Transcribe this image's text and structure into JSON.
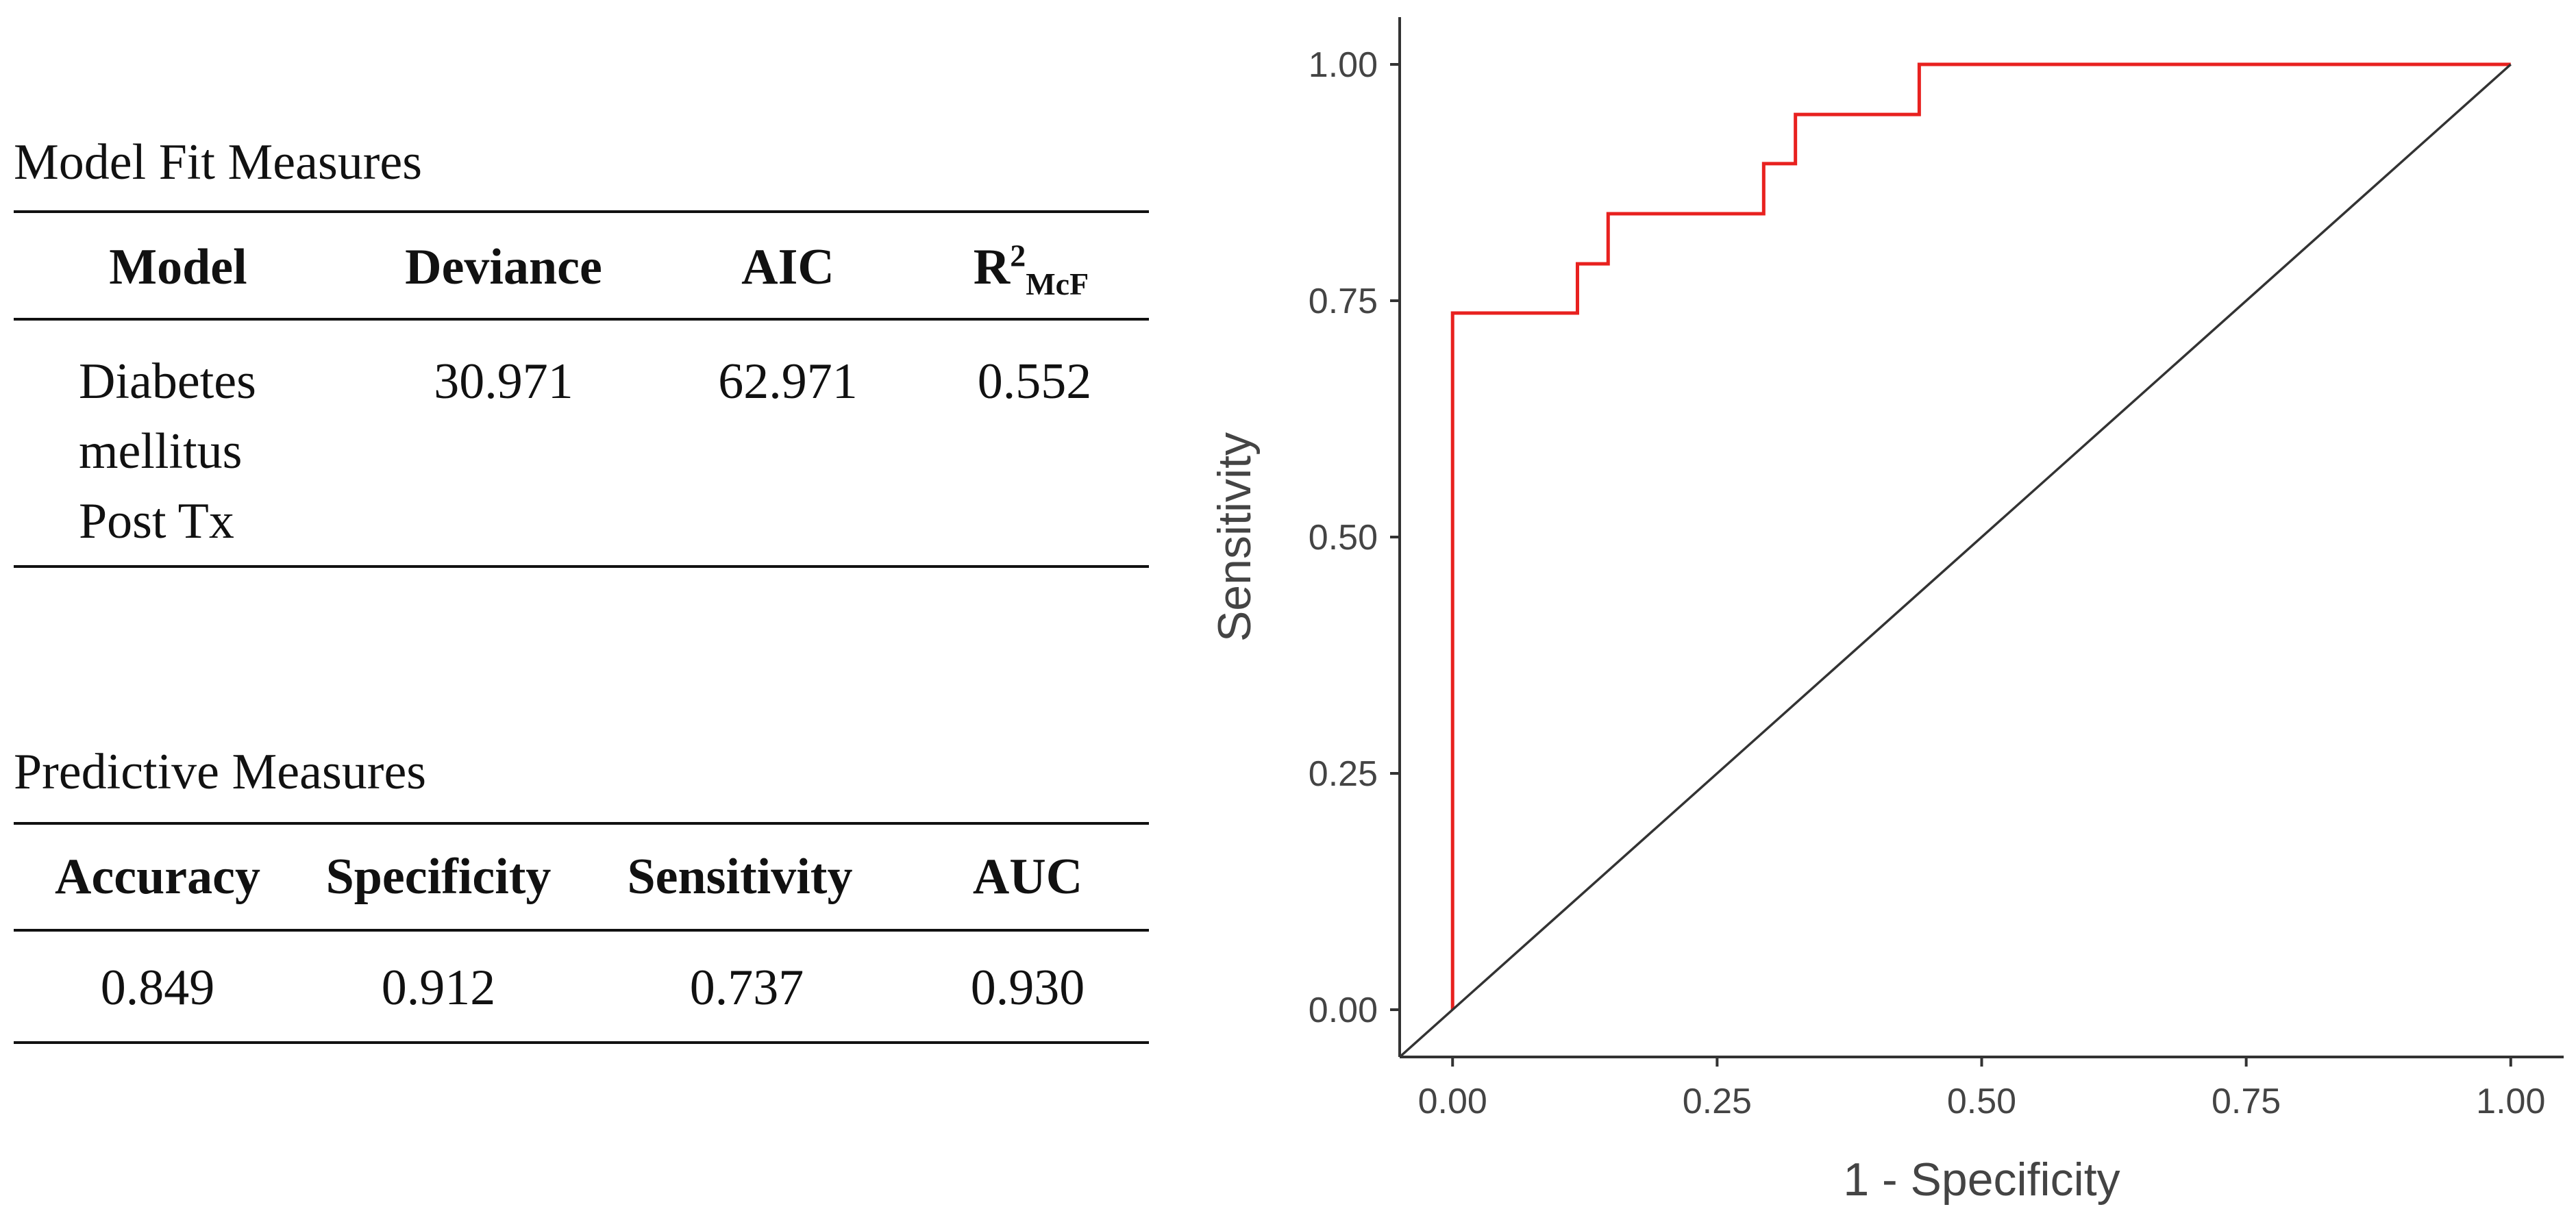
{
  "fit_table": {
    "title": "Model Fit Measures",
    "headers": {
      "model": "Model",
      "deviance": "Deviance",
      "aic": "AIC",
      "r2_base": "R",
      "r2_sup": "2",
      "r2_sub": "McF"
    },
    "row": {
      "model_line1": "Diabetes",
      "model_line2": "mellitus",
      "model_line3": "Post Tx",
      "deviance": "30.971",
      "aic": "62.971",
      "r2": "0.552"
    }
  },
  "pred_table": {
    "title": "Predictive Measures",
    "headers": {
      "accuracy": "Accuracy",
      "specificity": "Specificity",
      "sensitivity": "Sensitivity",
      "auc": "AUC"
    },
    "row": {
      "accuracy": "0.849",
      "specificity": "0.912",
      "sensitivity": "0.737",
      "auc": "0.930"
    }
  },
  "chart_data": {
    "type": "line",
    "title": "",
    "xlabel": "1 - Specificity",
    "ylabel": "Sensitivity",
    "xlim": [
      -0.05,
      1.05
    ],
    "ylim": [
      -0.05,
      1.05
    ],
    "xticks": [
      0.0,
      0.25,
      0.5,
      0.75,
      1.0
    ],
    "xtick_labels": [
      "0.00",
      "0.25",
      "0.50",
      "0.75",
      "1.00"
    ],
    "yticks": [
      0.0,
      0.25,
      0.5,
      0.75,
      1.0
    ],
    "ytick_labels": [
      "0.00",
      "0.25",
      "0.50",
      "0.75",
      "1.00"
    ],
    "grid": false,
    "series": [
      {
        "name": "ROC",
        "color": "#e8211f",
        "x": [
          0.0,
          0.0,
          0.118,
          0.118,
          0.147,
          0.147,
          0.294,
          0.294,
          0.324,
          0.324,
          0.441,
          0.441,
          1.0
        ],
        "y": [
          0.0,
          0.737,
          0.737,
          0.789,
          0.789,
          0.842,
          0.842,
          0.895,
          0.895,
          0.947,
          0.947,
          1.0,
          1.0
        ]
      },
      {
        "name": "Reference",
        "color": "#333333",
        "x": [
          -0.05,
          1.0
        ],
        "y": [
          -0.05,
          1.0
        ]
      }
    ]
  }
}
